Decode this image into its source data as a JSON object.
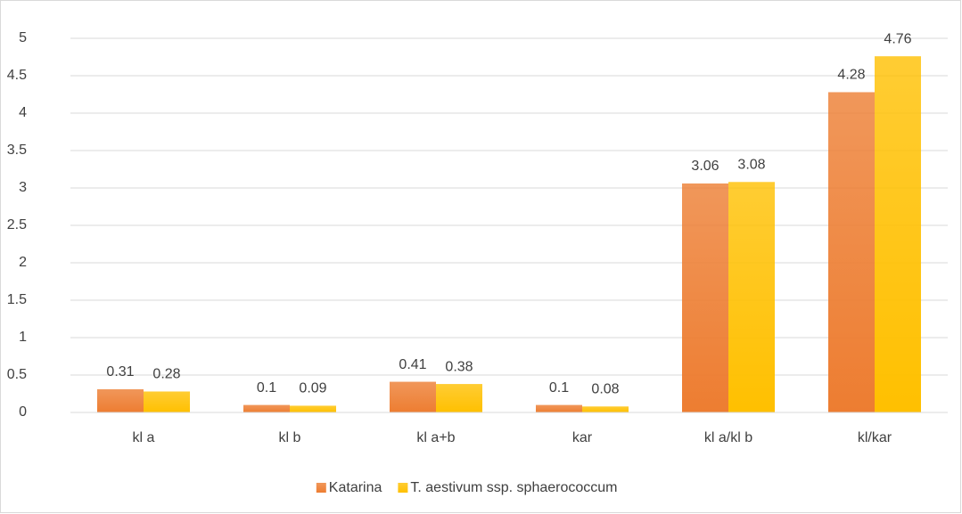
{
  "chart_data": {
    "type": "bar",
    "categories": [
      "kl a",
      "kl b",
      "kl a+b",
      "kar",
      "kl a/kl b",
      "kl/kar"
    ],
    "series": [
      {
        "name": "Katarina",
        "color": "#ed7d31",
        "values": [
          0.31,
          0.1,
          0.41,
          0.1,
          3.06,
          4.28
        ]
      },
      {
        "name": "T. aestivum ssp. sphaerococcum",
        "color": "#ffc000",
        "values": [
          0.28,
          0.09,
          0.38,
          0.08,
          3.08,
          4.76
        ]
      }
    ],
    "ylim": [
      0,
      5
    ],
    "yticks": [
      0,
      0.5,
      1,
      1.5,
      2,
      2.5,
      3,
      3.5,
      4,
      4.5,
      5
    ],
    "grid": true,
    "legend": "bottom"
  }
}
